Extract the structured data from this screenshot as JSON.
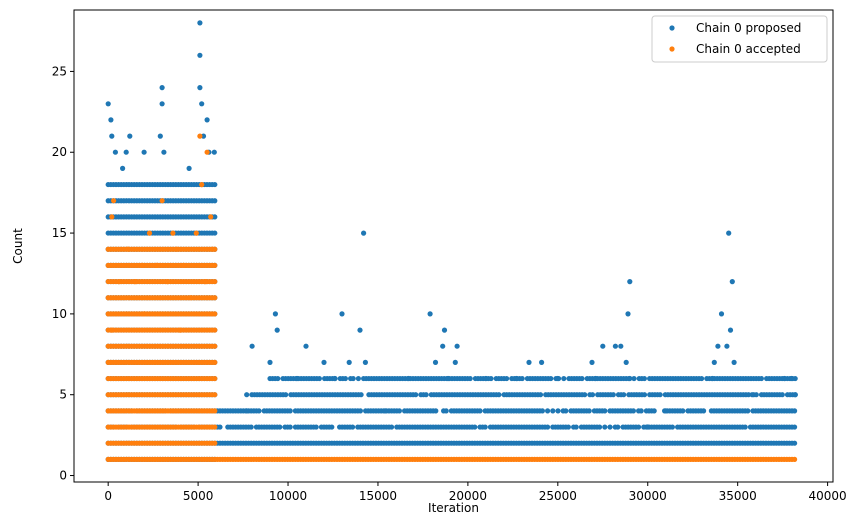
{
  "chart_data": {
    "type": "scatter",
    "title": "",
    "xlabel": "Iteration",
    "ylabel": "Count",
    "xlim": [
      -1900,
      40300
    ],
    "ylim": [
      -0.4,
      28.8
    ],
    "xticks": [
      0,
      5000,
      10000,
      15000,
      20000,
      25000,
      30000,
      35000,
      40000
    ],
    "yticks": [
      0,
      5,
      10,
      15,
      20,
      25
    ],
    "grid": false,
    "legend_position": "top-right",
    "colors": {
      "proposed": "#1f77b4",
      "accepted": "#ff7f0e"
    },
    "series": [
      {
        "name": "Chain 0 proposed",
        "color": "#1f77b4",
        "points": [
          [
            0,
            23
          ],
          [
            150,
            22
          ],
          [
            200,
            21
          ],
          [
            400,
            20
          ],
          [
            1200,
            21
          ],
          [
            3000,
            24
          ],
          [
            3000,
            23
          ],
          [
            2900,
            21
          ],
          [
            5100,
            28
          ],
          [
            5100,
            26
          ],
          [
            5100,
            24
          ],
          [
            5200,
            23
          ],
          [
            5500,
            22
          ],
          [
            5300,
            21
          ],
          [
            5600,
            20
          ],
          [
            5900,
            20
          ],
          [
            3100,
            20
          ],
          [
            2000,
            20
          ],
          [
            1000,
            20
          ],
          [
            800,
            19
          ],
          [
            4500,
            19
          ],
          [
            14200,
            15
          ],
          [
            34500,
            15
          ],
          [
            29000,
            12
          ],
          [
            34700,
            12
          ],
          [
            9300,
            10
          ],
          [
            13000,
            10
          ],
          [
            17900,
            10
          ],
          [
            28900,
            10
          ],
          [
            34100,
            10
          ],
          [
            9400,
            9
          ],
          [
            14000,
            9
          ],
          [
            18700,
            9
          ],
          [
            34600,
            9
          ],
          [
            8000,
            8
          ],
          [
            11000,
            8
          ],
          [
            18600,
            8
          ],
          [
            19400,
            8
          ],
          [
            27500,
            8
          ],
          [
            28200,
            8
          ],
          [
            28500,
            8
          ],
          [
            33900,
            8
          ],
          [
            34400,
            8
          ],
          [
            9000,
            7
          ],
          [
            12000,
            7
          ],
          [
            13400,
            7
          ],
          [
            14300,
            7
          ],
          [
            18200,
            7
          ],
          [
            19300,
            7
          ],
          [
            23400,
            7
          ],
          [
            24100,
            7
          ],
          [
            26900,
            7
          ],
          [
            28800,
            7
          ],
          [
            33700,
            7
          ],
          [
            34800,
            7
          ],
          [
            37600,
            6
          ],
          [
            10500,
            6
          ],
          [
            12600,
            6
          ],
          [
            16700,
            6
          ],
          [
            18900,
            6
          ],
          [
            21000,
            6
          ],
          [
            22700,
            6
          ],
          [
            25000,
            6
          ],
          [
            27100,
            6
          ],
          [
            29000,
            6
          ],
          [
            33600,
            6
          ],
          [
            35800,
            5
          ],
          [
            38000,
            6
          ],
          [
            15400,
            4
          ],
          [
            7700,
            4
          ],
          [
            30000,
            3
          ],
          [
            31000,
            4
          ],
          [
            38200,
            5
          ]
        ],
        "bands": [
          {
            "y": 1,
            "x": [
              0,
              6000
            ]
          },
          {
            "y": 2,
            "x": [
              0,
              38300
            ]
          },
          {
            "y": 3,
            "x": [
              0,
              38300
            ]
          },
          {
            "y": 4,
            "x": [
              0,
              38300
            ]
          },
          {
            "y": 5,
            "x": [
              0,
              6000
            ]
          },
          {
            "y": 6,
            "x": [
              0,
              6000
            ]
          },
          {
            "y": 7,
            "x": [
              0,
              6000
            ]
          },
          {
            "y": 8,
            "x": [
              0,
              6000
            ]
          },
          {
            "y": 9,
            "x": [
              0,
              6000
            ]
          },
          {
            "y": 10,
            "x": [
              0,
              6000
            ]
          },
          {
            "y": 11,
            "x": [
              0,
              6000
            ]
          },
          {
            "y": 12,
            "x": [
              0,
              6000
            ]
          },
          {
            "y": 13,
            "x": [
              0,
              6000
            ]
          },
          {
            "y": 14,
            "x": [
              0,
              6000
            ]
          },
          {
            "y": 15,
            "x": [
              0,
              6000
            ]
          },
          {
            "y": 16,
            "x": [
              0,
              6000
            ]
          },
          {
            "y": 17,
            "x": [
              0,
              6000
            ]
          },
          {
            "y": 18,
            "x": [
              0,
              6000
            ]
          },
          {
            "y": 5,
            "x": [
              7700,
              38300
            ]
          },
          {
            "y": 6,
            "x": [
              9000,
              38300
            ]
          }
        ]
      },
      {
        "name": "Chain 0 accepted",
        "color": "#ff7f0e",
        "points": [
          [
            5100,
            21
          ],
          [
            5200,
            18
          ],
          [
            5500,
            20
          ],
          [
            300,
            17
          ],
          [
            3000,
            17
          ],
          [
            200,
            16
          ],
          [
            5700,
            16
          ],
          [
            2300,
            15
          ],
          [
            4900,
            15
          ],
          [
            3800,
            14
          ],
          [
            1100,
            14
          ],
          [
            5800,
            14
          ],
          [
            4200,
            13
          ],
          [
            2700,
            13
          ],
          [
            1500,
            12
          ],
          [
            600,
            12
          ],
          [
            3300,
            12
          ],
          [
            5400,
            12
          ],
          [
            3600,
            15
          ],
          [
            1900,
            13
          ],
          [
            4600,
            11
          ],
          [
            200,
            9
          ],
          [
            2000,
            10
          ],
          [
            4000,
            9
          ]
        ],
        "bands": [
          {
            "y": 1,
            "x": [
              0,
              38300
            ]
          },
          {
            "y": 2,
            "x": [
              0,
              6000
            ]
          },
          {
            "y": 3,
            "x": [
              0,
              6000
            ]
          },
          {
            "y": 4,
            "x": [
              0,
              6000
            ]
          },
          {
            "y": 5,
            "x": [
              0,
              6000
            ]
          },
          {
            "y": 6,
            "x": [
              0,
              6000
            ]
          },
          {
            "y": 7,
            "x": [
              0,
              6000
            ]
          },
          {
            "y": 8,
            "x": [
              0,
              6000
            ]
          },
          {
            "y": 9,
            "x": [
              0,
              6000
            ]
          },
          {
            "y": 10,
            "x": [
              0,
              6000
            ]
          },
          {
            "y": 11,
            "x": [
              0,
              6000
            ]
          },
          {
            "y": 12,
            "x": [
              0,
              6000
            ]
          },
          {
            "y": 13,
            "x": [
              0,
              6000
            ]
          },
          {
            "y": 14,
            "x": [
              0,
              6000
            ]
          }
        ]
      }
    ]
  }
}
